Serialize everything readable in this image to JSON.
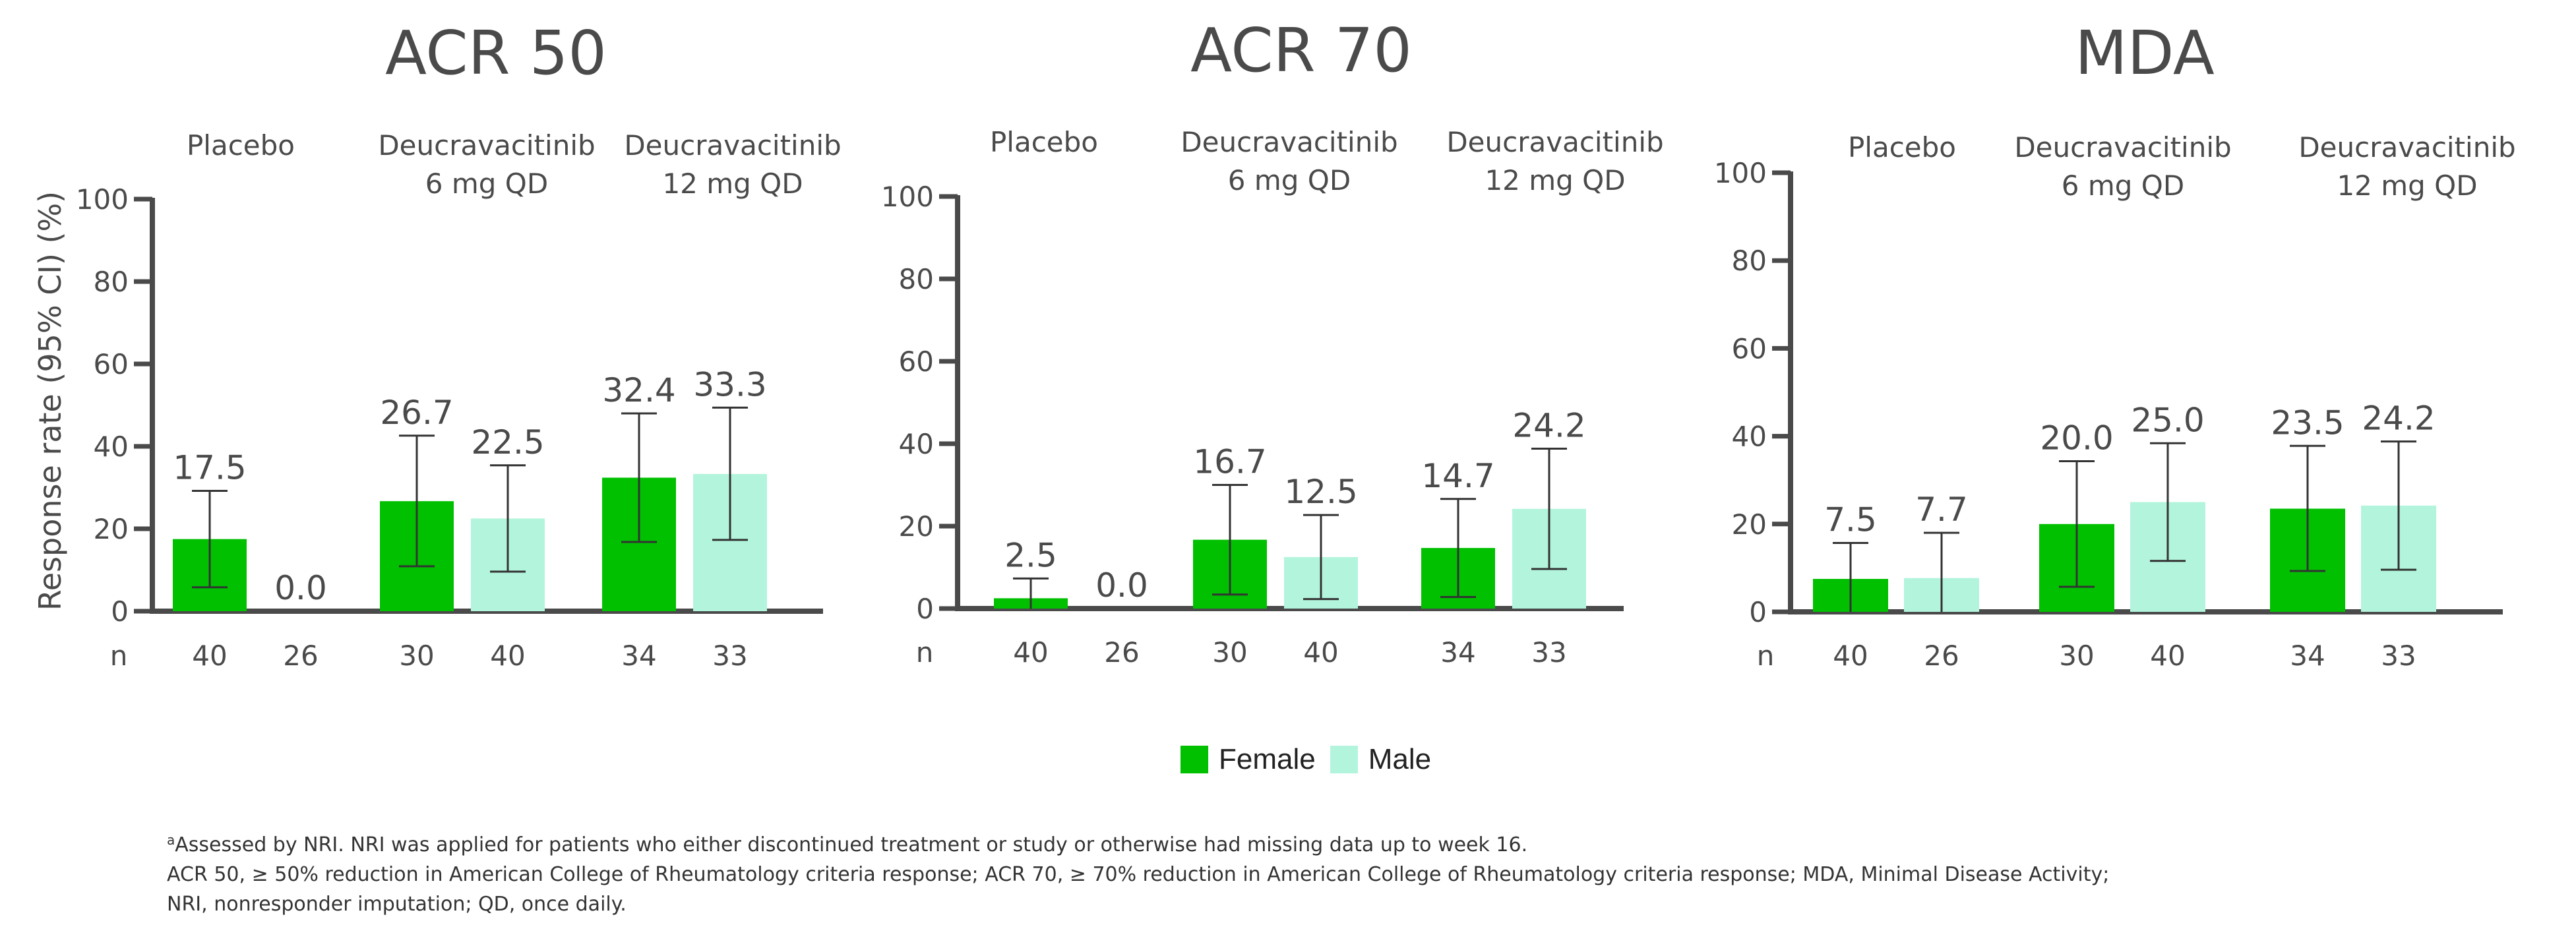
{
  "colors": {
    "female": "#00c000",
    "male": "#b3f5dc",
    "axis": "#4a4a4a",
    "text": "#4a4a4a"
  },
  "legend": {
    "female_label": "Female",
    "male_label": "Male"
  },
  "shared_ylabel": "Response rate (95% CI) (%)",
  "n_label": "n",
  "chart_data": [
    {
      "type": "bar",
      "title": "ACR 50",
      "groups": [
        [
          "Placebo"
        ],
        [
          "Deucravacitinib",
          "6 mg QD"
        ],
        [
          "Deucravacitinib",
          "12 mg QD"
        ]
      ],
      "ylim": [
        0,
        100
      ],
      "yticks": [
        0,
        20,
        40,
        60,
        80,
        100
      ],
      "series": [
        {
          "name": "Female",
          "values": [
            17.5,
            26.7,
            32.4
          ],
          "labels": [
            "17.5",
            "26.7",
            "32.4"
          ],
          "ci_low": [
            5.8,
            10.9,
            16.8
          ],
          "ci_high": [
            29.2,
            42.6,
            48.0
          ],
          "n": [
            "40",
            "30",
            "34"
          ]
        },
        {
          "name": "Male",
          "values": [
            0.0,
            22.5,
            33.3
          ],
          "labels": [
            "0.0",
            "22.5",
            "33.3"
          ],
          "ci_low": [
            null,
            9.6,
            17.3
          ],
          "ci_high": [
            null,
            35.4,
            49.4
          ],
          "n": [
            "26",
            "40",
            "33"
          ]
        }
      ]
    },
    {
      "type": "bar",
      "title": "ACR 70",
      "groups": [
        [
          "Placebo"
        ],
        [
          "Deucravacitinib",
          "6 mg QD"
        ],
        [
          "Deucravacitinib",
          "12 mg QD"
        ]
      ],
      "ylim": [
        0,
        100
      ],
      "yticks": [
        0,
        20,
        40,
        60,
        80,
        100
      ],
      "series": [
        {
          "name": "Female",
          "values": [
            2.5,
            16.7,
            14.7
          ],
          "labels": [
            "2.5",
            "16.7",
            "14.7"
          ],
          "ci_low": [
            0.0,
            3.4,
            2.8
          ],
          "ci_high": [
            7.3,
            30.0,
            26.6
          ],
          "n": [
            "40",
            "30",
            "34"
          ]
        },
        {
          "name": "Male",
          "values": [
            0.0,
            12.5,
            24.2
          ],
          "labels": [
            "0.0",
            "12.5",
            "24.2"
          ],
          "ci_low": [
            null,
            2.3,
            9.6
          ],
          "ci_high": [
            null,
            22.7,
            38.8
          ],
          "n": [
            "26",
            "40",
            "33"
          ]
        }
      ]
    },
    {
      "type": "bar",
      "title": "MDA",
      "groups": [
        [
          "Placebo"
        ],
        [
          "Deucravacitinib",
          "6 mg QD"
        ],
        [
          "Deucravacitinib",
          "12 mg QD"
        ]
      ],
      "ylim": [
        0,
        100
      ],
      "yticks": [
        0,
        20,
        40,
        60,
        80,
        100
      ],
      "series": [
        {
          "name": "Female",
          "values": [
            7.5,
            20.0,
            23.5
          ],
          "labels": [
            "7.5",
            "20.0",
            "23.5"
          ],
          "ci_low": [
            0.0,
            5.7,
            9.3
          ],
          "ci_high": [
            15.7,
            34.3,
            37.8
          ],
          "n": [
            "40",
            "30",
            "34"
          ]
        },
        {
          "name": "Male",
          "values": [
            7.7,
            25.0,
            24.2
          ],
          "labels": [
            "7.7",
            "25.0",
            "24.2"
          ],
          "ci_low": [
            0.0,
            11.6,
            9.6
          ],
          "ci_high": [
            18.0,
            38.4,
            38.8
          ],
          "n": [
            "26",
            "40",
            "33"
          ]
        }
      ]
    }
  ],
  "footnotes": {
    "line1_sup": "a",
    "line1": "Assessed by NRI. NRI was applied for patients who either discontinued treatment or study or otherwise had missing data up to week 16.",
    "line2": "ACR 50, ≥ 50% reduction in American College of Rheumatology criteria response; ACR 70, ≥ 70% reduction in American College of Rheumatology criteria response; MDA, Minimal Disease Activity;",
    "line3": "NRI, nonresponder imputation; QD, once daily."
  }
}
